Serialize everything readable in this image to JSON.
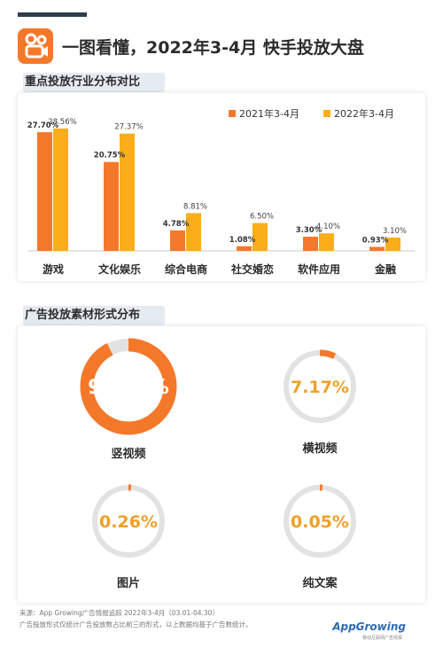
{
  "header": {
    "title": "一图看懂，2022年3-4月 快手投放大盘"
  },
  "sections": {
    "industry": "重点投放行业分布对比",
    "format": "广告投放素材形式分布"
  },
  "colors": {
    "series_2021": "#f4782a",
    "series_2022": "#fbad1a",
    "ring_track": "#e2e2e2",
    "ring_fill": "#f4782a",
    "accent_text": "#f0a028"
  },
  "chart_data": [
    {
      "type": "bar",
      "title": "重点投放行业分布对比",
      "categories": [
        "游戏",
        "文化娱乐",
        "综合电商",
        "社交婚恋",
        "软件应用",
        "金融"
      ],
      "series": [
        {
          "name": "2021年3-4月",
          "values": [
            27.7,
            20.75,
            4.78,
            1.08,
            3.3,
            0.93
          ],
          "labels": [
            "27.70%",
            "20.75%",
            "4.78%",
            "1.08%",
            "3.30%",
            "0.93%"
          ]
        },
        {
          "name": "2022年3-4月",
          "values": [
            28.56,
            27.37,
            8.81,
            6.5,
            4.1,
            3.1
          ],
          "labels": [
            "28.56%",
            "27.37%",
            "8.81%",
            "6.50%",
            "4.10%",
            "3.10%"
          ]
        }
      ],
      "ylim": [
        0,
        30
      ],
      "legend": "top-right",
      "grid": false
    },
    {
      "type": "pie",
      "title": "广告投放素材形式分布",
      "categories": [
        "竖视频",
        "横视频",
        "图片",
        "纯文案"
      ],
      "values": [
        92.52,
        7.17,
        0.26,
        0.05
      ],
      "labels": [
        "92.52%",
        "7.17%",
        "0.26%",
        "0.05%"
      ]
    }
  ],
  "footer": {
    "line1": "来源：App Growing广告情报追踪 2022年3-4月（03.01-04.30）",
    "line2": "广告投放形式仅统计广告投放数占比前三的形式，以上数据均基于广告数统计。",
    "brand": "AppGrowing",
    "brand_sub": "移动互联网广告情报"
  }
}
